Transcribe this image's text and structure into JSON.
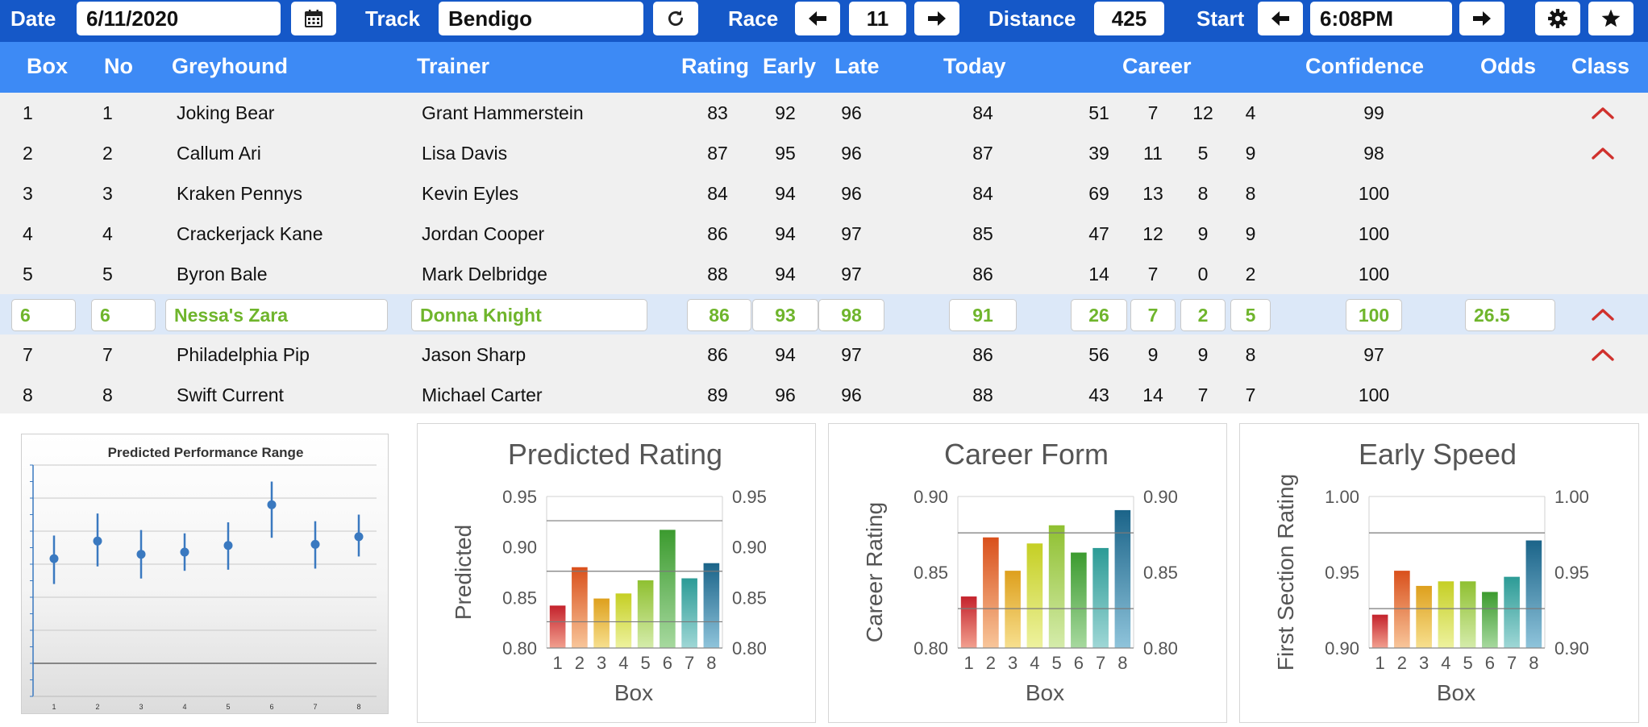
{
  "toolbar": {
    "date_label": "Date",
    "date_value": "6/11/2020",
    "track_label": "Track",
    "track_value": "Bendigo",
    "race_label": "Race",
    "race_value": "11",
    "distance_label": "Distance",
    "distance_value": "425",
    "start_label": "Start",
    "start_value": "6:08PM",
    "icons": [
      "calendar-icon",
      "refresh-icon",
      "arrow-left-icon",
      "arrow-right-icon",
      "gear-icon",
      "star-icon"
    ]
  },
  "table": {
    "headers": {
      "box": "Box",
      "no": "No",
      "greyhound": "Greyhound",
      "trainer": "Trainer",
      "rating": "Rating",
      "early": "Early",
      "late": "Late",
      "today": "Today",
      "career": "Career",
      "confidence": "Confidence",
      "odds": "Odds",
      "class": "Class"
    },
    "selected_row": 5,
    "accent_color": "#6fb52c",
    "class_up_color": "#d0312d",
    "rows": [
      {
        "box": "1",
        "no": "1",
        "greyhound": "Joking Bear",
        "trainer": "Grant Hammerstein",
        "rating": "83",
        "early": "92",
        "late": "96",
        "today": "84",
        "c1": "51",
        "c2": "7",
        "c3": "12",
        "c4": "4",
        "confidence": "99",
        "odds": "",
        "class_up": true
      },
      {
        "box": "2",
        "no": "2",
        "greyhound": "Callum Ari",
        "trainer": "Lisa Davis",
        "rating": "87",
        "early": "95",
        "late": "96",
        "today": "87",
        "c1": "39",
        "c2": "11",
        "c3": "5",
        "c4": "9",
        "confidence": "98",
        "odds": "",
        "class_up": true
      },
      {
        "box": "3",
        "no": "3",
        "greyhound": "Kraken Pennys",
        "trainer": "Kevin Eyles",
        "rating": "84",
        "early": "94",
        "late": "96",
        "today": "84",
        "c1": "69",
        "c2": "13",
        "c3": "8",
        "c4": "8",
        "confidence": "100",
        "odds": "",
        "class_up": false
      },
      {
        "box": "4",
        "no": "4",
        "greyhound": "Crackerjack Kane",
        "trainer": "Jordan Cooper",
        "rating": "86",
        "early": "94",
        "late": "97",
        "today": "85",
        "c1": "47",
        "c2": "12",
        "c3": "9",
        "c4": "9",
        "confidence": "100",
        "odds": "",
        "class_up": false
      },
      {
        "box": "5",
        "no": "5",
        "greyhound": "Byron Bale",
        "trainer": "Mark Delbridge",
        "rating": "88",
        "early": "94",
        "late": "97",
        "today": "86",
        "c1": "14",
        "c2": "7",
        "c3": "0",
        "c4": "2",
        "confidence": "100",
        "odds": "",
        "class_up": false
      },
      {
        "box": "6",
        "no": "6",
        "greyhound": "Nessa's Zara",
        "trainer": "Donna Knight",
        "rating": "86",
        "early": "93",
        "late": "98",
        "today": "91",
        "c1": "26",
        "c2": "7",
        "c3": "2",
        "c4": "5",
        "confidence": "100",
        "odds": "26.5",
        "class_up": true
      },
      {
        "box": "7",
        "no": "7",
        "greyhound": "Philadelphia Pip",
        "trainer": "Jason Sharp",
        "rating": "86",
        "early": "94",
        "late": "97",
        "today": "86",
        "c1": "56",
        "c2": "9",
        "c3": "9",
        "c4": "8",
        "confidence": "97",
        "odds": "",
        "class_up": true
      },
      {
        "box": "8",
        "no": "8",
        "greyhound": "Swift Current",
        "trainer": "Michael Carter",
        "rating": "89",
        "early": "96",
        "late": "96",
        "today": "88",
        "c1": "43",
        "c2": "14",
        "c3": "7",
        "c4": "7",
        "confidence": "100",
        "odds": "",
        "class_up": false
      }
    ]
  },
  "chart_data": [
    {
      "type": "scatter",
      "title": "Predicted Performance Range",
      "x": [
        1,
        2,
        3,
        4,
        5,
        6,
        7,
        8
      ],
      "values": [
        0.35,
        0.51,
        0.39,
        0.41,
        0.47,
        0.84,
        0.48,
        0.55
      ],
      "range_low": [
        0.12,
        0.28,
        0.17,
        0.24,
        0.25,
        0.54,
        0.26,
        0.37
      ],
      "range_high": [
        0.56,
        0.76,
        0.61,
        0.58,
        0.68,
        1.05,
        0.69,
        0.75
      ],
      "ylim": [
        -0.9,
        1.2
      ],
      "grid": true,
      "legend": "none",
      "color": "#3a79c0"
    },
    {
      "type": "bar",
      "title": "Predicted Rating",
      "xlabel": "Box",
      "ylabel": "Predicted",
      "categories": [
        "1",
        "2",
        "3",
        "4",
        "5",
        "6",
        "7",
        "8"
      ],
      "values": [
        0.842,
        0.88,
        0.849,
        0.854,
        0.867,
        0.917,
        0.869,
        0.884
      ],
      "ylim": [
        0.8,
        0.95
      ],
      "yticks": [
        "0.80",
        "0.85",
        "0.90",
        "0.95"
      ],
      "reference_lines": [
        0.826,
        0.876,
        0.926
      ],
      "secondary_axis": true
    },
    {
      "type": "bar",
      "title": "Career Form",
      "xlabel": "Box",
      "ylabel": "Career Rating",
      "categories": [
        "1",
        "2",
        "3",
        "4",
        "5",
        "6",
        "7",
        "8"
      ],
      "values": [
        0.834,
        0.873,
        0.851,
        0.869,
        0.881,
        0.863,
        0.866,
        0.891
      ],
      "ylim": [
        0.8,
        0.9
      ],
      "yticks": [
        "0.80",
        "0.85",
        "0.90"
      ],
      "reference_lines": [
        0.826,
        0.876
      ],
      "secondary_axis": true
    },
    {
      "type": "bar",
      "title": "Early Speed",
      "xlabel": "Box",
      "ylabel": "First Section Rating",
      "categories": [
        "1",
        "2",
        "3",
        "4",
        "5",
        "6",
        "7",
        "8"
      ],
      "values": [
        0.922,
        0.951,
        0.941,
        0.944,
        0.944,
        0.937,
        0.947,
        0.971
      ],
      "ylim": [
        0.9,
        1.0
      ],
      "yticks": [
        "0.90",
        "0.95",
        "1.00"
      ],
      "reference_lines": [
        0.926,
        0.976
      ],
      "secondary_axis": true
    }
  ],
  "bar_colors": [
    [
      "#c4222c",
      "#f2a08f"
    ],
    [
      "#d9501c",
      "#f8c69a"
    ],
    [
      "#dea01d",
      "#f7e08f"
    ],
    [
      "#c5cf24",
      "#eef29f"
    ],
    [
      "#8fc031",
      "#d5ecab"
    ],
    [
      "#3c9b2f",
      "#a7d99f"
    ],
    [
      "#2c9b96",
      "#9fd7d6"
    ],
    [
      "#1b6489",
      "#8fc4db"
    ]
  ]
}
